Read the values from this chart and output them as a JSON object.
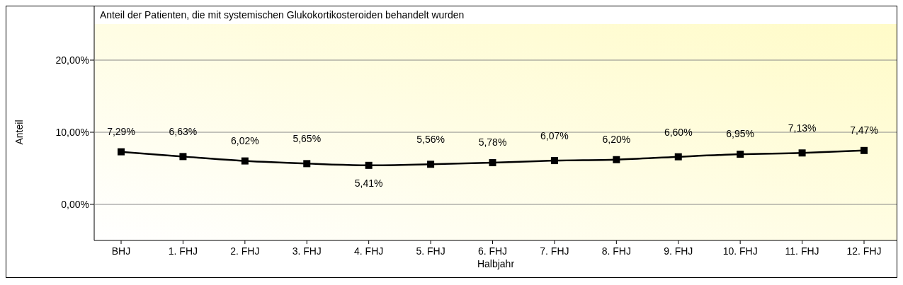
{
  "chart_data": {
    "type": "line",
    "title": "Anteil der Patienten, die mit systemischen Glukokortikosteroiden behandelt wurden",
    "xlabel": "Halbjahr",
    "ylabel": "Anteil",
    "categories": [
      "BHJ",
      "1. FHJ",
      "2. FHJ",
      "3. FHJ",
      "4. FHJ",
      "5. FHJ",
      "6. FHJ",
      "7. FHJ",
      "8. FHJ",
      "9. FHJ",
      "10. FHJ",
      "11. FHJ",
      "12. FHJ"
    ],
    "series": [
      {
        "color": "#000000",
        "values": [
          7.29,
          6.63,
          6.02,
          5.65,
          5.41,
          5.56,
          5.78,
          6.07,
          6.2,
          6.6,
          6.95,
          7.13,
          7.47
        ],
        "value_labels": [
          "7,29%",
          "6,63%",
          "6,02%",
          "5,65%",
          "5,41%",
          "5,56%",
          "5,78%",
          "6,07%",
          "6,20%",
          "6,60%",
          "6,95%",
          "7,13%",
          "7,47%"
        ]
      }
    ],
    "ylim": [
      -5,
      25
    ],
    "yticks": [
      {
        "value": 0,
        "label": "0,00%"
      },
      {
        "value": 10,
        "label": "10,00%"
      },
      {
        "value": 20,
        "label": "20,00%"
      }
    ],
    "grid": "y",
    "marker": "square",
    "line_style": "solid"
  }
}
